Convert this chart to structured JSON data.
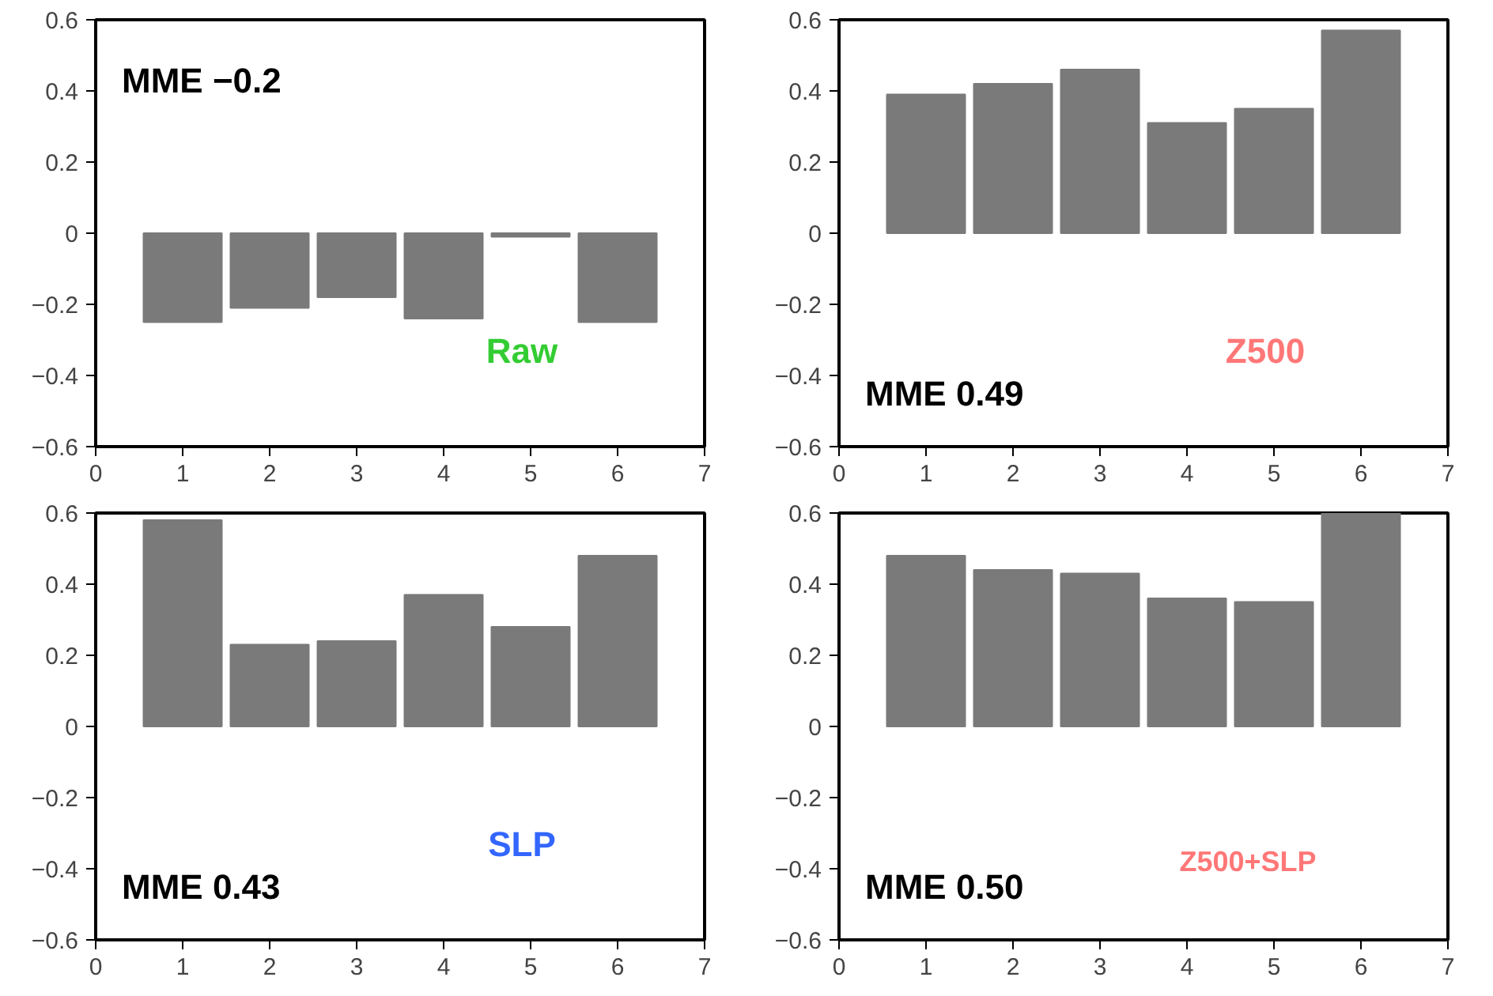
{
  "chart_data": [
    {
      "type": "bar",
      "x": [
        1,
        2,
        3,
        4,
        5,
        6
      ],
      "values": [
        -0.25,
        -0.21,
        -0.18,
        -0.24,
        -0.01,
        -0.25
      ],
      "color": "#7a7a7a",
      "xlim": [
        0,
        7
      ],
      "xticks": [
        0,
        1,
        2,
        3,
        4,
        5,
        6,
        7
      ],
      "ylim": [
        -0.6,
        0.6
      ],
      "yticks": [
        -0.6,
        -0.4,
        -0.2,
        0,
        0.2,
        0.4,
        0.6
      ],
      "grid": false,
      "annotations": [
        "MME −0.2",
        "Raw"
      ]
    },
    {
      "type": "bar",
      "x": [
        1,
        2,
        3,
        4,
        5,
        6
      ],
      "values": [
        0.39,
        0.42,
        0.46,
        0.31,
        0.35,
        0.57
      ],
      "color": "#7a7a7a",
      "xlim": [
        0,
        7
      ],
      "xticks": [
        0,
        1,
        2,
        3,
        4,
        5,
        6,
        7
      ],
      "ylim": [
        -0.6,
        0.6
      ],
      "yticks": [
        -0.6,
        -0.4,
        -0.2,
        0,
        0.2,
        0.4,
        0.6
      ],
      "grid": false,
      "annotations": [
        "MME 0.49",
        "Z500"
      ]
    },
    {
      "type": "bar",
      "x": [
        1,
        2,
        3,
        4,
        5,
        6
      ],
      "values": [
        0.58,
        0.23,
        0.24,
        0.37,
        0.28,
        0.48
      ],
      "color": "#7a7a7a",
      "xlim": [
        0,
        7
      ],
      "xticks": [
        0,
        1,
        2,
        3,
        4,
        5,
        6,
        7
      ],
      "ylim": [
        -0.6,
        0.6
      ],
      "yticks": [
        -0.6,
        -0.4,
        -0.2,
        0,
        0.2,
        0.4,
        0.6
      ],
      "grid": false,
      "annotations": [
        "MME 0.43",
        "SLP"
      ]
    },
    {
      "type": "bar",
      "x": [
        1,
        2,
        3,
        4,
        5,
        6
      ],
      "values": [
        0.48,
        0.44,
        0.43,
        0.36,
        0.35,
        0.6
      ],
      "color": "#7a7a7a",
      "xlim": [
        0,
        7
      ],
      "xticks": [
        0,
        1,
        2,
        3,
        4,
        5,
        6,
        7
      ],
      "ylim": [
        -0.6,
        0.6
      ],
      "yticks": [
        -0.6,
        -0.4,
        -0.2,
        0,
        0.2,
        0.4,
        0.6
      ],
      "grid": false,
      "annotations": [
        "MME 0.50",
        "Z500+SLP"
      ]
    }
  ]
}
